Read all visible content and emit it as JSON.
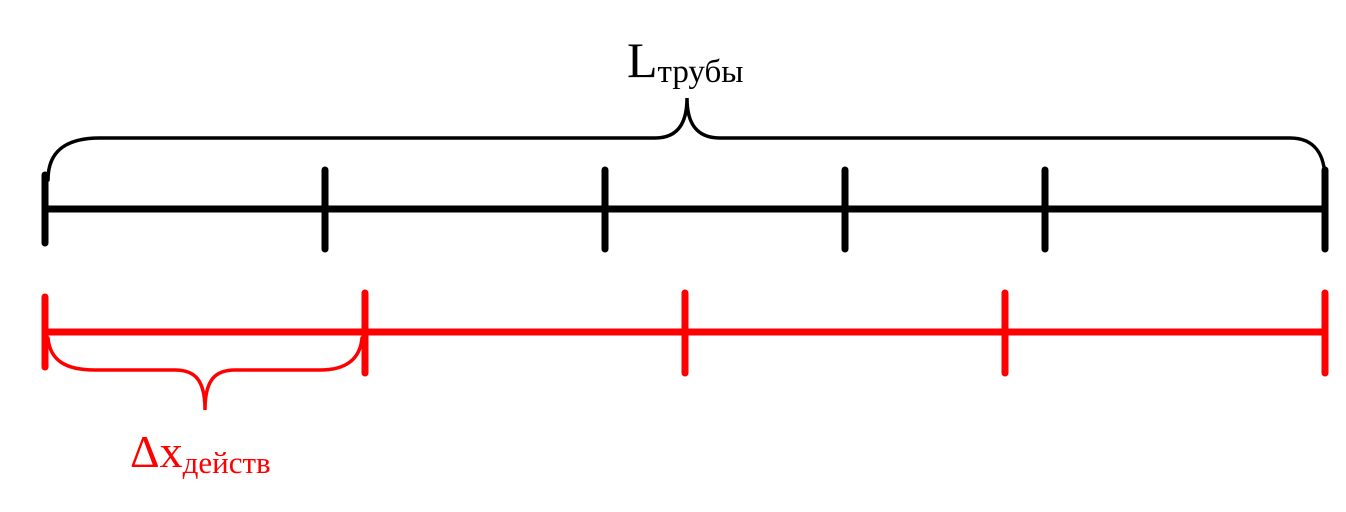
{
  "top_segment": {
    "label_main": "L",
    "label_sub": "трубы",
    "color": "#000000"
  },
  "bottom_segment": {
    "label_main": "Δx",
    "label_sub": "действ",
    "color": "#ff0000"
  }
}
